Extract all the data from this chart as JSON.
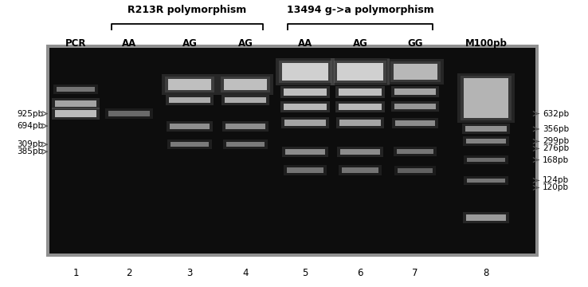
{
  "fig_width": 7.38,
  "fig_height": 3.6,
  "bg_color": "#ffffff",
  "gel_bg": "#0a0a0a",
  "gel_border_color": "#aaaaaa",
  "r213r_label": "R213R polymorphism",
  "g13494_label": "13494 g->a polymorphism",
  "lane_labels": [
    "PCR",
    "AA",
    "AG",
    "AG",
    "AA",
    "AG",
    "GG",
    "M100pb"
  ],
  "lane_numbers": [
    "1",
    "2",
    "3",
    "4",
    "5",
    "6",
    "7",
    "8"
  ],
  "left_markers": [
    "925pb",
    "694pb",
    "309pb",
    "385pb"
  ],
  "right_markers": [
    "632pb",
    "356pb",
    "299pb",
    "276pb",
    "168pb",
    "124pb",
    "120pb"
  ]
}
